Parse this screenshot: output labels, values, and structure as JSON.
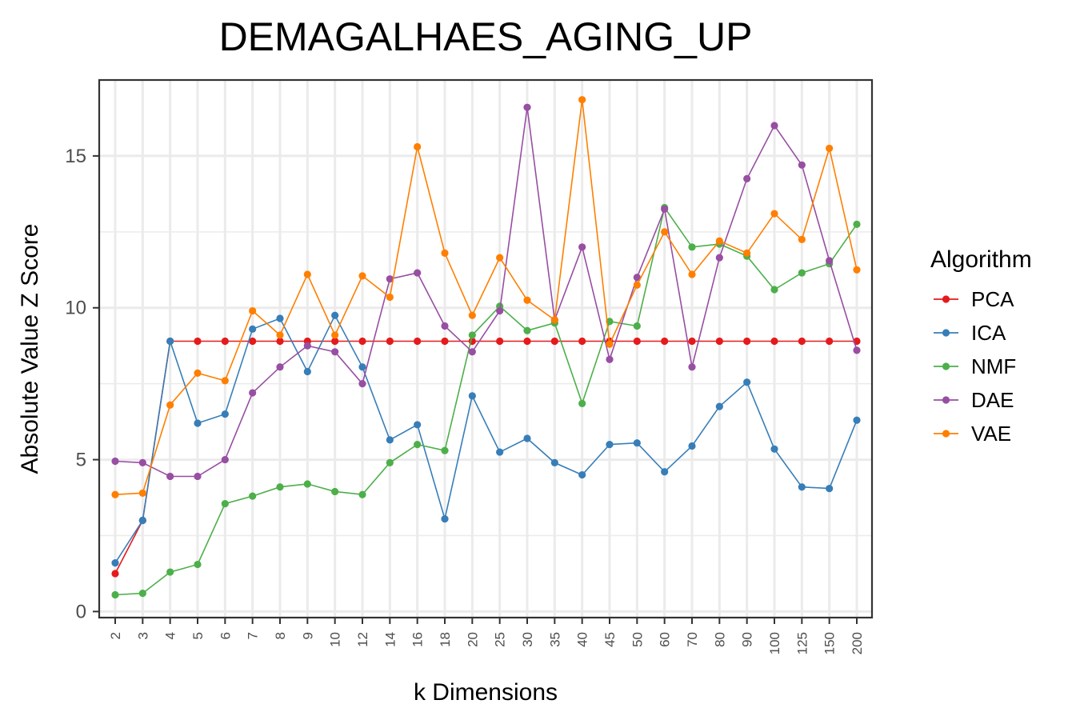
{
  "chart_data": {
    "type": "line",
    "title": "DEMAGALHAES_AGING_UP",
    "xlabel": "k Dimensions",
    "ylabel": "Absolute Value Z Score",
    "categories": [
      "2",
      "3",
      "4",
      "5",
      "6",
      "7",
      "8",
      "9",
      "10",
      "12",
      "14",
      "16",
      "18",
      "20",
      "25",
      "30",
      "35",
      "40",
      "45",
      "50",
      "60",
      "70",
      "80",
      "90",
      "100",
      "125",
      "150",
      "200"
    ],
    "yticks": [
      0,
      5,
      10,
      15
    ],
    "ylim": [
      -0.2,
      17.5
    ],
    "grid": true,
    "legend": {
      "title": "Algorithm",
      "position": "right"
    },
    "series": [
      {
        "name": "PCA",
        "color": "#e41a1c",
        "values": [
          1.25,
          3.0,
          8.9,
          8.9,
          8.9,
          8.9,
          8.9,
          8.9,
          8.9,
          8.9,
          8.9,
          8.9,
          8.9,
          8.9,
          8.9,
          8.9,
          8.9,
          8.9,
          8.9,
          8.9,
          8.9,
          8.9,
          8.9,
          8.9,
          8.9,
          8.9,
          8.9,
          8.9
        ]
      },
      {
        "name": "ICA",
        "color": "#377eb8",
        "values": [
          1.6,
          3.0,
          8.9,
          6.2,
          6.5,
          9.3,
          9.65,
          7.9,
          9.75,
          8.05,
          5.65,
          6.15,
          3.05,
          7.1,
          5.25,
          5.7,
          4.9,
          4.5,
          5.5,
          5.55,
          4.6,
          5.45,
          6.75,
          7.55,
          5.35,
          4.1,
          4.05,
          6.3
        ]
      },
      {
        "name": "NMF",
        "color": "#4daf4a",
        "values": [
          0.55,
          0.6,
          1.3,
          1.55,
          3.55,
          3.8,
          4.1,
          4.2,
          3.95,
          3.85,
          4.9,
          5.5,
          5.3,
          9.1,
          10.05,
          9.25,
          9.5,
          6.85,
          9.55,
          9.4,
          13.3,
          12.0,
          12.1,
          11.7,
          10.6,
          11.15,
          11.45,
          12.75
        ]
      },
      {
        "name": "DAE",
        "color": "#984ea3",
        "values": [
          4.95,
          4.9,
          4.45,
          4.45,
          5.0,
          7.2,
          8.05,
          8.75,
          8.55,
          7.5,
          10.95,
          11.15,
          9.4,
          8.55,
          9.9,
          16.6,
          9.6,
          12.0,
          8.3,
          11.0,
          13.25,
          8.05,
          11.65,
          14.25,
          16.0,
          14.7,
          11.55,
          8.6
        ]
      },
      {
        "name": "VAE",
        "color": "#ff7f00",
        "values": [
          3.85,
          3.9,
          6.8,
          7.85,
          7.6,
          9.9,
          9.1,
          11.1,
          9.1,
          11.05,
          10.35,
          15.3,
          11.8,
          9.75,
          11.65,
          10.25,
          9.6,
          16.85,
          8.8,
          10.75,
          12.5,
          11.1,
          12.2,
          11.8,
          13.1,
          12.25,
          15.25,
          11.25
        ]
      }
    ]
  }
}
